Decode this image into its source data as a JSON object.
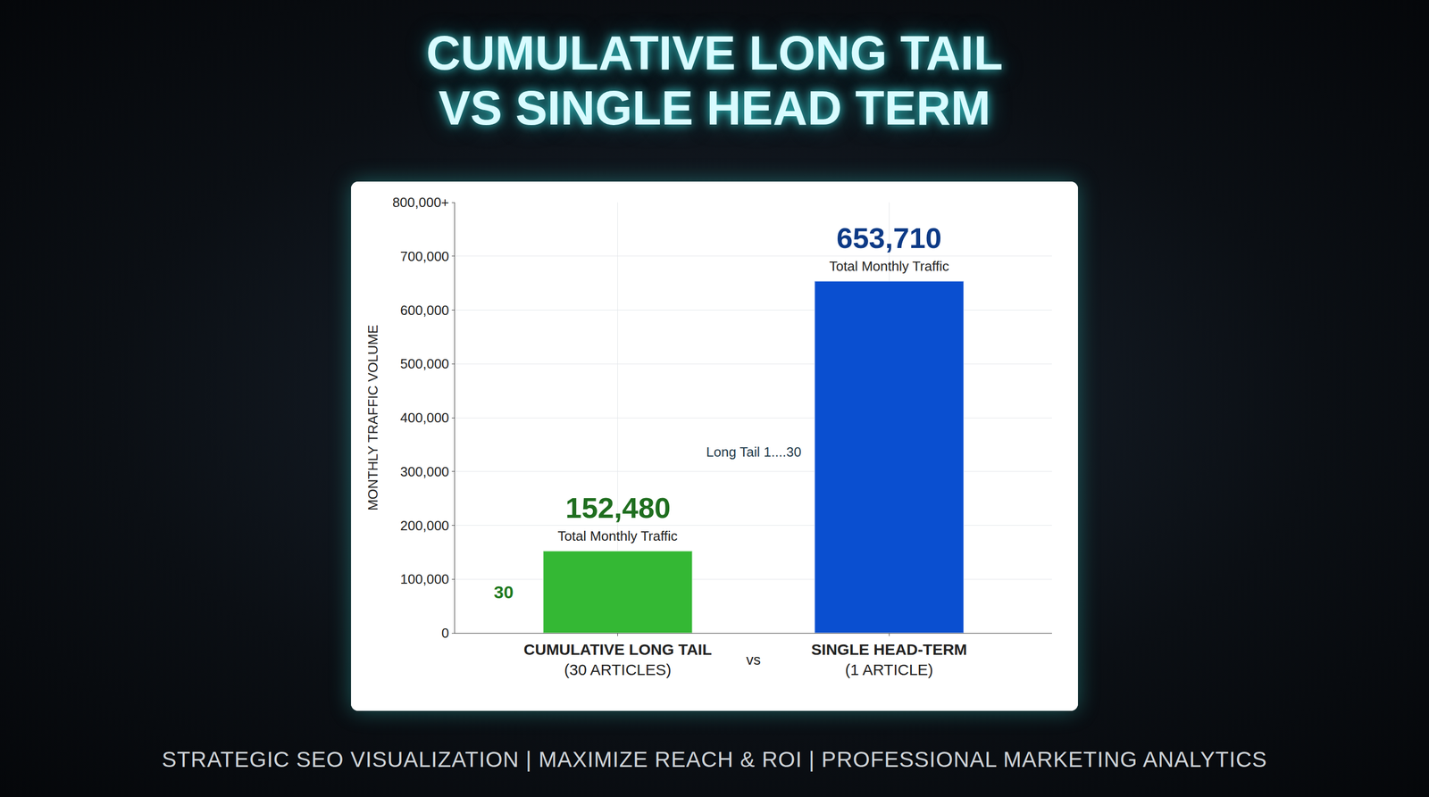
{
  "chart_data": {
    "type": "bar",
    "title": "CUMULATIVE LONG TAIL VS SINGLE HEAD TERM",
    "footer": "STRATEGIC SEO VISUALIZATION | MAXIMIZE REACH & ROI | PROFESSIONAL MARKETING ANALYTICS",
    "y_label": "MONTHLY TRAFFIC VOLUME",
    "categories": [
      "CUMULATIVE LONG TAIL (30 ARTICLES)",
      "SINGLE HEAD-TERM (1 ARTICLE)"
    ],
    "values": [
      152480,
      653710
    ],
    "value_labels": [
      "152,480",
      "653,710"
    ],
    "colors": [
      "#34b834",
      "#0a4fd0"
    ],
    "data_labels": true,
    "annotations": {
      "note": "Total Monthly Traffic",
      "bridge": "Long Tail 1....30",
      "count": "30",
      "versus": "vs"
    },
    "ylim": [
      0,
      800000
    ],
    "yticks": [
      0,
      {
        "value": 100000,
        "label": "100,000"
      },
      {
        "value": 200000,
        "label": "200,000"
      },
      {
        "value": 300000,
        "label": "300,000"
      },
      {
        "value": 400000,
        "label": "400,000"
      },
      {
        "value": 500000,
        "label": "500,000"
      },
      {
        "value": 600000,
        "label": "600,000"
      },
      {
        "value": 700000,
        "label": "700,000"
      },
      {
        "value": 800000,
        "label": "800,000+"
      }
    ],
    "grid": true
  }
}
